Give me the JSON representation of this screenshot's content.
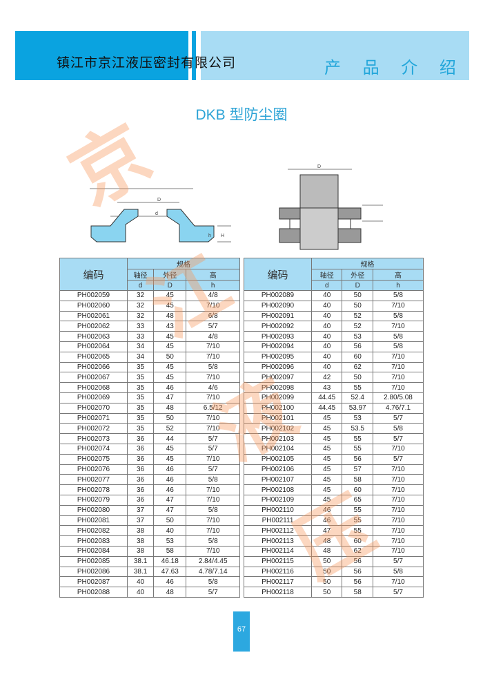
{
  "header": {
    "company": "镇江市京江液压密封有限公司",
    "section": "产 品 介 绍"
  },
  "title": "DKB 型防尘圈",
  "watermark": [
    "京",
    "江",
    "液",
    "压"
  ],
  "diagram_labels": {
    "D": "D",
    "d": "d",
    "H": "H",
    "h": "h"
  },
  "table": {
    "code_header": "编码",
    "spec_header": "规格",
    "sub_headers": [
      "轴径",
      "外径",
      "高"
    ],
    "symbols": [
      "d",
      "D",
      "h"
    ],
    "left_rows": [
      [
        "PH002059",
        "32",
        "45",
        "4/8"
      ],
      [
        "PH002060",
        "32",
        "45",
        "7/10"
      ],
      [
        "PH002061",
        "32",
        "48",
        "6/8"
      ],
      [
        "PH002062",
        "33",
        "43",
        "5/7"
      ],
      [
        "PH002063",
        "33",
        "45",
        "4/8"
      ],
      [
        "PH002064",
        "34",
        "45",
        "7/10"
      ],
      [
        "PH002065",
        "34",
        "50",
        "7/10"
      ],
      [
        "PH002066",
        "35",
        "45",
        "5/8"
      ],
      [
        "PH002067",
        "35",
        "45",
        "7/10"
      ],
      [
        "PH002068",
        "35",
        "46",
        "4/6"
      ],
      [
        "PH002069",
        "35",
        "47",
        "7/10"
      ],
      [
        "PH002070",
        "35",
        "48",
        "6.5/12"
      ],
      [
        "PH002071",
        "35",
        "50",
        "7/10"
      ],
      [
        "PH002072",
        "35",
        "52",
        "7/10"
      ],
      [
        "PH002073",
        "36",
        "44",
        "5/7"
      ],
      [
        "PH002074",
        "36",
        "45",
        "5/7"
      ],
      [
        "PH002075",
        "36",
        "45",
        "7/10"
      ],
      [
        "PH002076",
        "36",
        "46",
        "5/7"
      ],
      [
        "PH002077",
        "36",
        "46",
        "5/8"
      ],
      [
        "PH002078",
        "36",
        "46",
        "7/10"
      ],
      [
        "PH002079",
        "36",
        "47",
        "7/10"
      ],
      [
        "PH002080",
        "37",
        "47",
        "5/8"
      ],
      [
        "PH002081",
        "37",
        "50",
        "7/10"
      ],
      [
        "PH002082",
        "38",
        "40",
        "7/10"
      ],
      [
        "PH002083",
        "38",
        "53",
        "5/8"
      ],
      [
        "PH002084",
        "38",
        "58",
        "7/10"
      ],
      [
        "PH002085",
        "38.1",
        "46.18",
        "2.84/4.45"
      ],
      [
        "PH002086",
        "38.1",
        "47.63",
        "4.78/7.14"
      ],
      [
        "PH002087",
        "40",
        "46",
        "5/8"
      ],
      [
        "PH002088",
        "40",
        "48",
        "5/7"
      ]
    ],
    "right_rows": [
      [
        "PH002089",
        "40",
        "50",
        "5/8"
      ],
      [
        "PH002090",
        "40",
        "50",
        "7/10"
      ],
      [
        "PH002091",
        "40",
        "52",
        "5/8"
      ],
      [
        "PH002092",
        "40",
        "52",
        "7/10"
      ],
      [
        "PH002093",
        "40",
        "53",
        "5/8"
      ],
      [
        "PH002094",
        "40",
        "56",
        "5/8"
      ],
      [
        "PH002095",
        "40",
        "60",
        "7/10"
      ],
      [
        "PH002096",
        "40",
        "62",
        "7/10"
      ],
      [
        "PH002097",
        "42",
        "50",
        "7/10"
      ],
      [
        "PH002098",
        "43",
        "55",
        "7/10"
      ],
      [
        "PH002099",
        "44.45",
        "52.4",
        "2.80/5.08"
      ],
      [
        "PH002100",
        "44.45",
        "53.97",
        "4.76/7.1"
      ],
      [
        "PH002101",
        "45",
        "53",
        "5/7"
      ],
      [
        "PH002102",
        "45",
        "53.5",
        "5/8"
      ],
      [
        "PH002103",
        "45",
        "55",
        "5/7"
      ],
      [
        "PH002104",
        "45",
        "55",
        "7/10"
      ],
      [
        "PH002105",
        "45",
        "56",
        "5/7"
      ],
      [
        "PH002106",
        "45",
        "57",
        "7/10"
      ],
      [
        "PH002107",
        "45",
        "58",
        "7/10"
      ],
      [
        "PH002108",
        "45",
        "60",
        "7/10"
      ],
      [
        "PH002109",
        "45",
        "65",
        "7/10"
      ],
      [
        "PH002110",
        "46",
        "55",
        "7/10"
      ],
      [
        "PH002111",
        "46",
        "55",
        "7/10"
      ],
      [
        "PH002112",
        "47",
        "55",
        "7/10"
      ],
      [
        "PH002113",
        "48",
        "60",
        "7/10"
      ],
      [
        "PH002114",
        "48",
        "62",
        "7/10"
      ],
      [
        "PH002115",
        "50",
        "56",
        "5/7"
      ],
      [
        "PH002116",
        "50",
        "56",
        "5/8"
      ],
      [
        "PH002117",
        "50",
        "56",
        "7/10"
      ],
      [
        "PH002118",
        "50",
        "58",
        "5/7"
      ]
    ]
  },
  "page_number": "67"
}
